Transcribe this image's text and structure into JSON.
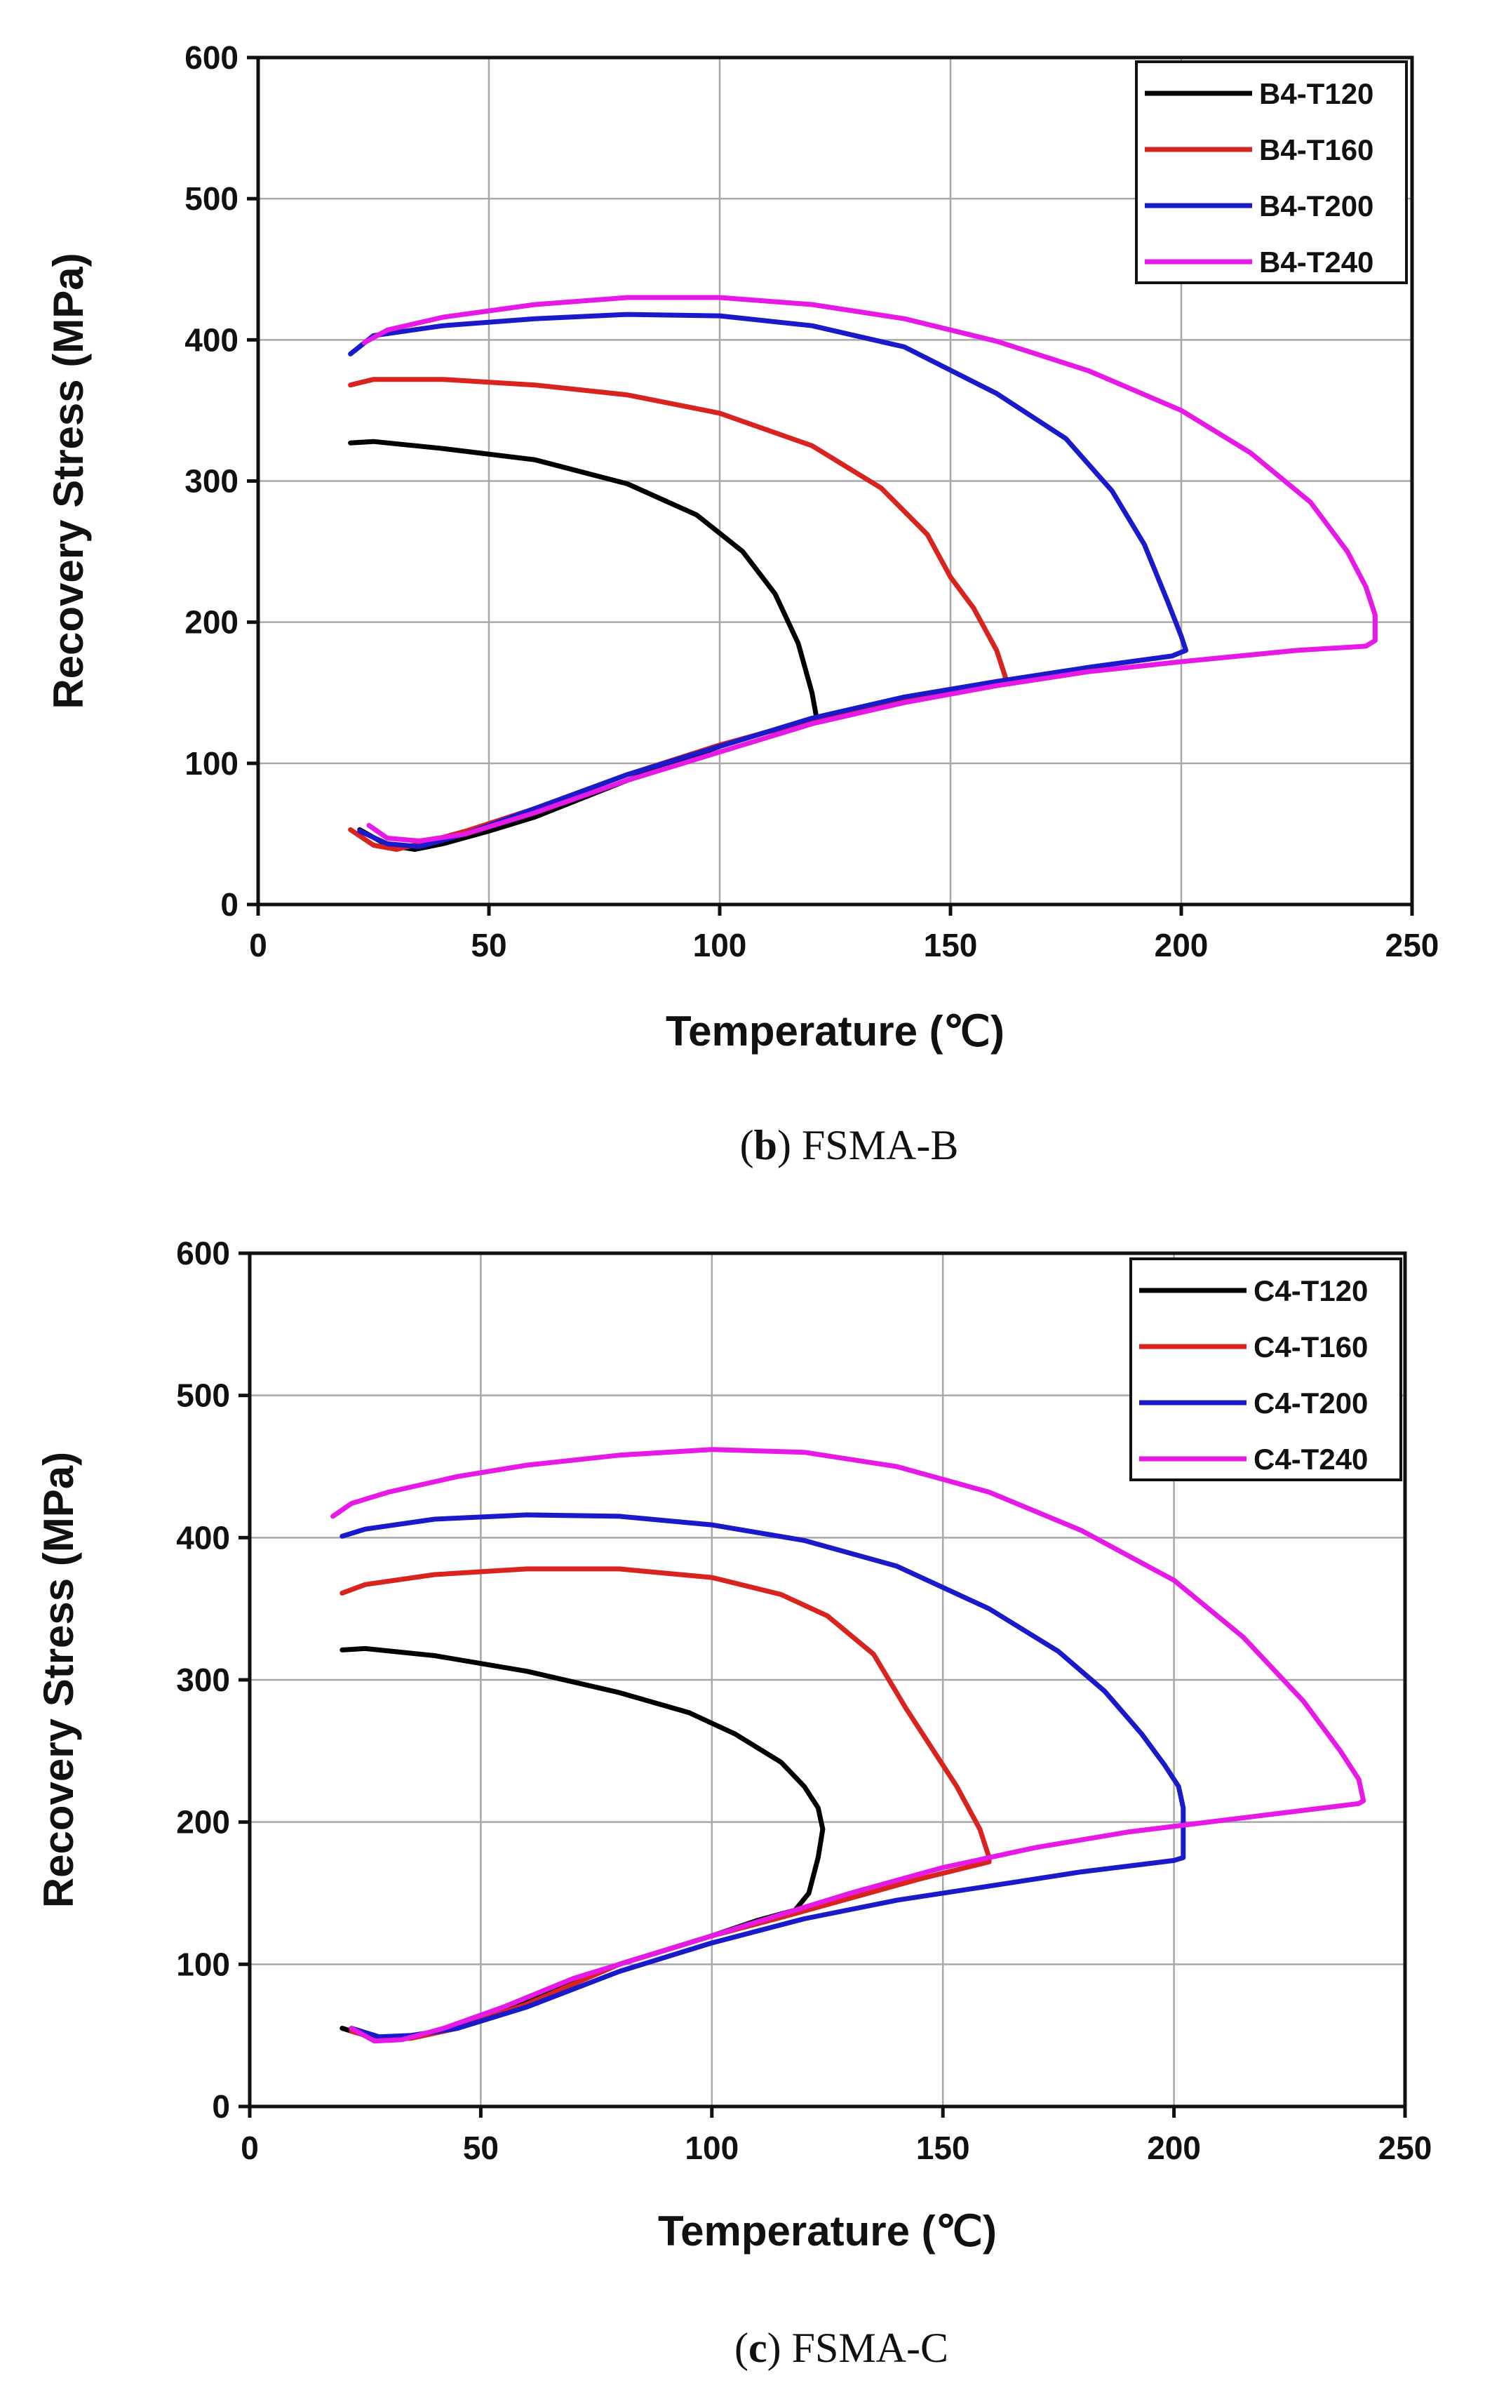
{
  "colors": {
    "T120": "#000000",
    "T160": "#d9231e",
    "T200": "#1a1acb",
    "T240": "#e619e6"
  },
  "chart_data": [
    {
      "type": "line",
      "panel": "b",
      "caption_letter": "b",
      "caption_text": "FSMA-B",
      "xlabel": "Temperature (℃)",
      "ylabel": "Recovery Stress (MPa)",
      "xlim": [
        0,
        250
      ],
      "ylim": [
        0,
        600
      ],
      "xticks": [
        0,
        50,
        100,
        150,
        200,
        250
      ],
      "yticks": [
        0,
        100,
        200,
        300,
        400,
        500,
        600
      ],
      "grid": true,
      "legend": "top-right",
      "series": [
        {
          "name": "B4-T120",
          "color_key": "T120",
          "x": [
            20,
            25,
            40,
            60,
            80,
            95,
            105,
            112,
            117,
            120,
            121,
            118,
            110,
            100,
            90,
            80,
            70,
            60,
            50,
            40,
            34,
            28,
            22
          ],
          "y": [
            327,
            328,
            323,
            315,
            298,
            276,
            250,
            220,
            185,
            150,
            132,
            128,
            122,
            112,
            100,
            88,
            75,
            62,
            52,
            43,
            39,
            42,
            53
          ]
        },
        {
          "name": "B4-T160",
          "color_key": "T160",
          "x": [
            20,
            25,
            40,
            60,
            80,
            100,
            120,
            135,
            145,
            150,
            155,
            160,
            162,
            161,
            150,
            140,
            130,
            120,
            110,
            100,
            80,
            60,
            45,
            35,
            30,
            25,
            20
          ],
          "y": [
            368,
            372,
            372,
            368,
            361,
            348,
            325,
            295,
            262,
            232,
            210,
            180,
            160,
            158,
            150,
            145,
            138,
            130,
            122,
            113,
            92,
            68,
            52,
            43,
            39,
            42,
            53
          ]
        },
        {
          "name": "B4-T200",
          "color_key": "T200",
          "x": [
            20,
            25,
            40,
            60,
            80,
            100,
            120,
            140,
            160,
            175,
            185,
            192,
            197,
            200,
            201,
            198,
            180,
            160,
            140,
            120,
            100,
            80,
            60,
            45,
            35,
            28,
            22
          ],
          "y": [
            390,
            403,
            410,
            415,
            418,
            417,
            410,
            395,
            362,
            330,
            293,
            255,
            215,
            190,
            180,
            176,
            168,
            158,
            147,
            132,
            112,
            92,
            68,
            50,
            41,
            43,
            52
          ]
        },
        {
          "name": "B4-T240",
          "color_key": "T240",
          "x": [
            23,
            28,
            40,
            60,
            80,
            100,
            120,
            140,
            160,
            180,
            200,
            215,
            228,
            236,
            240,
            242,
            242,
            240,
            225,
            200,
            180,
            160,
            140,
            120,
            100,
            80,
            60,
            45,
            35,
            28,
            24
          ],
          "y": [
            398,
            407,
            416,
            425,
            430,
            430,
            425,
            415,
            399,
            378,
            350,
            320,
            285,
            250,
            225,
            205,
            187,
            183,
            180,
            172,
            165,
            155,
            143,
            128,
            108,
            88,
            65,
            50,
            45,
            47,
            56
          ]
        }
      ]
    },
    {
      "type": "line",
      "panel": "c",
      "caption_letter": "c",
      "caption_text": "FSMA-C",
      "xlabel": "Temperature (℃)",
      "ylabel": "Recovery Stress (MPa)",
      "xlim": [
        0,
        250
      ],
      "ylim": [
        0,
        600
      ],
      "xticks": [
        0,
        50,
        100,
        150,
        200,
        250
      ],
      "yticks": [
        0,
        100,
        200,
        300,
        400,
        500,
        600
      ],
      "grid": true,
      "legend": "top-right",
      "series": [
        {
          "name": "C4-T120",
          "color_key": "T120",
          "x": [
            20,
            25,
            40,
            60,
            80,
            95,
            105,
            115,
            120,
            123,
            124,
            123,
            121,
            118,
            110,
            100,
            90,
            80,
            70,
            60,
            50,
            40,
            33,
            27,
            20
          ],
          "y": [
            321,
            322,
            317,
            306,
            291,
            277,
            262,
            242,
            225,
            210,
            195,
            175,
            150,
            138,
            131,
            120,
            110,
            100,
            87,
            73,
            60,
            52,
            48,
            48,
            55
          ]
        },
        {
          "name": "C4-T160",
          "color_key": "T160",
          "x": [
            20,
            25,
            40,
            60,
            80,
            100,
            115,
            125,
            135,
            142,
            148,
            153,
            158,
            160,
            160,
            155,
            145,
            135,
            125,
            115,
            100,
            80,
            60,
            45,
            35,
            28,
            22
          ],
          "y": [
            361,
            367,
            374,
            378,
            378,
            372,
            360,
            345,
            318,
            280,
            250,
            225,
            195,
            175,
            172,
            168,
            160,
            151,
            142,
            133,
            120,
            100,
            72,
            55,
            48,
            47,
            53
          ]
        },
        {
          "name": "C4-T200",
          "color_key": "T200",
          "x": [
            20,
            25,
            40,
            60,
            80,
            100,
            120,
            140,
            160,
            175,
            185,
            193,
            198,
            201,
            202,
            202,
            200,
            180,
            160,
            140,
            120,
            100,
            80,
            60,
            45,
            35,
            28,
            22
          ],
          "y": [
            401,
            406,
            413,
            416,
            415,
            409,
            398,
            380,
            350,
            320,
            292,
            262,
            240,
            225,
            210,
            175,
            173,
            165,
            155,
            145,
            132,
            115,
            95,
            70,
            55,
            50,
            49,
            55
          ]
        },
        {
          "name": "C4-T240",
          "color_key": "T240",
          "x": [
            18,
            22,
            30,
            45,
            60,
            80,
            100,
            120,
            140,
            160,
            180,
            200,
            215,
            228,
            236,
            240,
            241,
            240,
            230,
            210,
            190,
            170,
            150,
            130,
            110,
            90,
            70,
            55,
            42,
            33,
            27,
            22
          ],
          "y": [
            415,
            424,
            432,
            443,
            451,
            458,
            462,
            460,
            450,
            432,
            405,
            370,
            330,
            285,
            250,
            230,
            215,
            213,
            209,
            201,
            193,
            182,
            168,
            150,
            130,
            110,
            90,
            70,
            55,
            47,
            46,
            55
          ]
        }
      ]
    }
  ]
}
